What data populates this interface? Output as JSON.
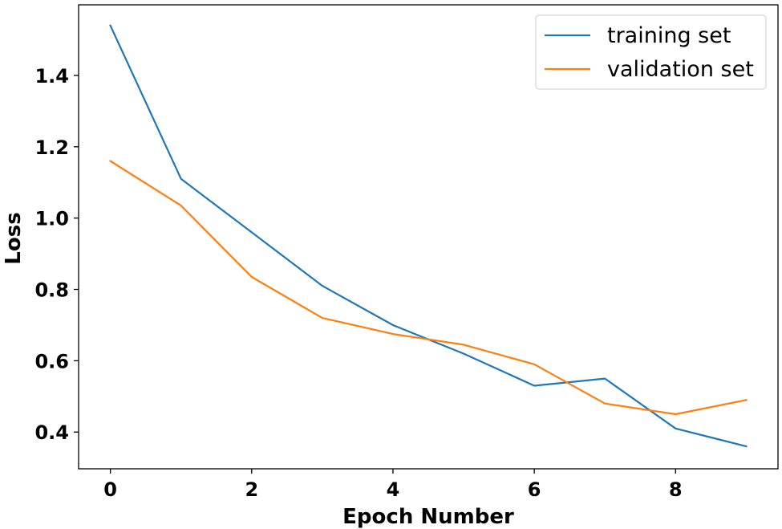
{
  "chart_data": {
    "type": "line",
    "title": "",
    "xlabel": "Epoch Number",
    "ylabel": "Loss",
    "x": [
      0,
      1,
      2,
      3,
      4,
      5,
      6,
      7,
      8,
      9
    ],
    "xlim": [
      -0.45,
      9.45
    ],
    "ylim": [
      0.297,
      1.598
    ],
    "xticks": [
      0,
      2,
      4,
      6,
      8
    ],
    "yticks": [
      0.4,
      0.6,
      0.8,
      1.0,
      1.2,
      1.4
    ],
    "xtick_labels": [
      "0",
      "2",
      "4",
      "6",
      "8"
    ],
    "ytick_labels": [
      "0.4",
      "0.6",
      "0.8",
      "1.0",
      "1.2",
      "1.4"
    ],
    "grid": false,
    "legend_position": "top-right",
    "series": [
      {
        "name": "training set",
        "color": "#1f77b4",
        "values": [
          1.54,
          1.11,
          0.96,
          0.81,
          0.7,
          0.62,
          0.53,
          0.55,
          0.41,
          0.36
        ]
      },
      {
        "name": "validation set",
        "color": "#ff7f0e",
        "values": [
          1.16,
          1.035,
          0.835,
          0.72,
          0.675,
          0.645,
          0.59,
          0.48,
          0.45,
          0.49
        ]
      }
    ]
  }
}
